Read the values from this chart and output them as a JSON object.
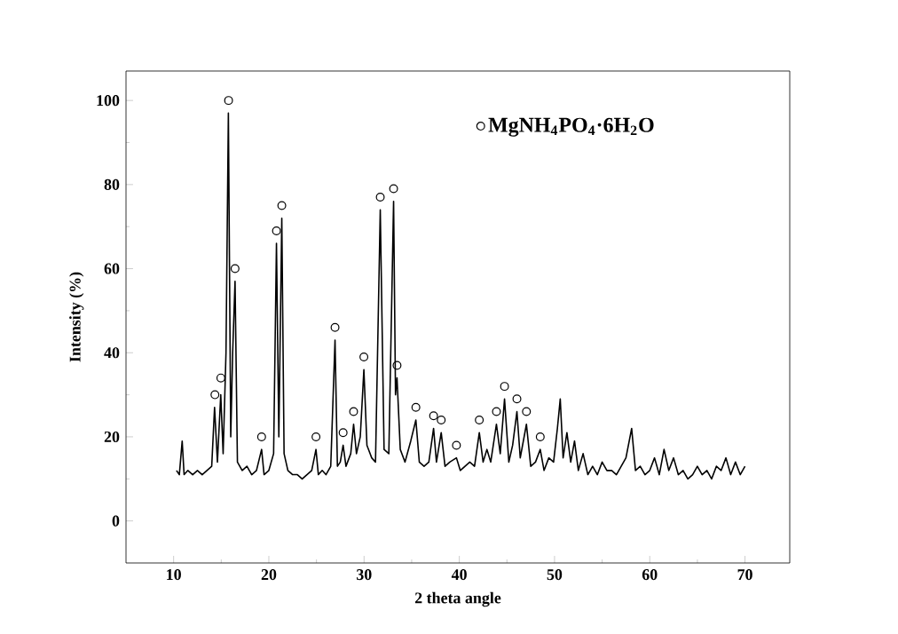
{
  "chart_data": {
    "type": "line",
    "xlabel": "2 theta angle",
    "ylabel": "Intensity (%)",
    "xlim": [
      5,
      74.7
    ],
    "ylim": [
      -10,
      107
    ],
    "xticks": [
      10,
      20,
      30,
      40,
      50,
      60,
      70
    ],
    "yticks": [
      0,
      20,
      40,
      60,
      80,
      100
    ],
    "grid": false,
    "legend": "top right",
    "series": [
      {
        "color": "#000000",
        "marker": "none",
        "x": [
          10.3,
          10.6,
          10.9,
          11.1,
          11.5,
          12,
          12.5,
          13,
          13.5,
          14,
          14.3,
          14.6,
          14.95,
          15.2,
          15.5,
          15.75,
          16.0,
          16.2,
          16.45,
          16.7,
          17.2,
          17.7,
          18.2,
          18.7,
          19.24,
          19.5,
          20,
          20.5,
          20.8,
          21.05,
          21.36,
          21.6,
          22,
          22.5,
          23,
          23.5,
          24,
          24.5,
          24.95,
          25.2,
          25.6,
          26,
          26.5,
          26.95,
          27.2,
          27.5,
          27.8,
          28.1,
          28.6,
          28.9,
          29.2,
          29.6,
          29.98,
          30.3,
          30.8,
          31.2,
          31.7,
          32.1,
          32.6,
          33.1,
          33.3,
          33.46,
          33.8,
          34.3,
          34.9,
          35.44,
          35.8,
          36.3,
          36.8,
          37.3,
          37.6,
          38.1,
          38.5,
          39,
          39.7,
          40.1,
          40.6,
          41.1,
          41.6,
          42.1,
          42.5,
          42.9,
          43.3,
          43.9,
          44.3,
          44.75,
          45.2,
          45.6,
          46.05,
          46.4,
          47.05,
          47.5,
          48,
          48.5,
          48.9,
          49.4,
          49.9,
          50.3,
          50.6,
          50.9,
          51.3,
          51.7,
          52.1,
          52.5,
          53,
          53.5,
          54,
          54.5,
          55,
          55.5,
          56,
          56.5,
          57,
          57.5,
          58.1,
          58.5,
          59,
          59.5,
          60,
          60.5,
          61,
          61.5,
          62,
          62.5,
          63,
          63.5,
          64,
          64.5,
          65,
          65.5,
          66,
          66.5,
          67,
          67.5,
          68,
          68.5,
          69,
          69.5,
          70
        ],
        "values": [
          12,
          11,
          19,
          11,
          12,
          11,
          12,
          11,
          12,
          13,
          27,
          14,
          30,
          16,
          40,
          97,
          20,
          40,
          57,
          14,
          12,
          13,
          11,
          12,
          17,
          11,
          12,
          16,
          66,
          20,
          72,
          16,
          12,
          11,
          11,
          10,
          11,
          12,
          17,
          11,
          12,
          11,
          13,
          43,
          13,
          14,
          18,
          13,
          16,
          23,
          16,
          20,
          36,
          18,
          15,
          14,
          74,
          17,
          16,
          76,
          30,
          34,
          17,
          14,
          19,
          24,
          14,
          13,
          14,
          22,
          14,
          21,
          13,
          14,
          15,
          12,
          13,
          14,
          13,
          21,
          14,
          17,
          14,
          23,
          16,
          29,
          14,
          18,
          26,
          15,
          23,
          13,
          14,
          17,
          12,
          15,
          14,
          22,
          29,
          15,
          21,
          14,
          19,
          12,
          16,
          11,
          13,
          11,
          14,
          12,
          12,
          11,
          13,
          15,
          22,
          12,
          13,
          11,
          12,
          15,
          11,
          17,
          12,
          15,
          11,
          12,
          10,
          11,
          13,
          11,
          12,
          10,
          13,
          12,
          15,
          11,
          14,
          11,
          13
        ]
      },
      {
        "type": "scatter",
        "name": "MgNH$_{4}$PO$_{4}$·6H$_{2}$O",
        "color": "#000000",
        "marker": "circle",
        "x": [
          14.34,
          14.96,
          15.77,
          16.45,
          19.24,
          20.8,
          21.36,
          24.95,
          26.95,
          27.8,
          28.9,
          29.98,
          31.7,
          33.1,
          33.46,
          35.44,
          37.3,
          38.1,
          39.7,
          42.1,
          43.9,
          44.75,
          46.05,
          47.05,
          48.5
        ],
        "values": [
          30,
          34,
          100,
          60,
          20,
          69,
          75,
          20,
          46,
          21,
          26,
          39,
          77,
          79,
          37,
          27,
          25,
          24,
          18,
          24,
          26,
          32,
          29,
          26,
          20
        ]
      }
    ]
  }
}
